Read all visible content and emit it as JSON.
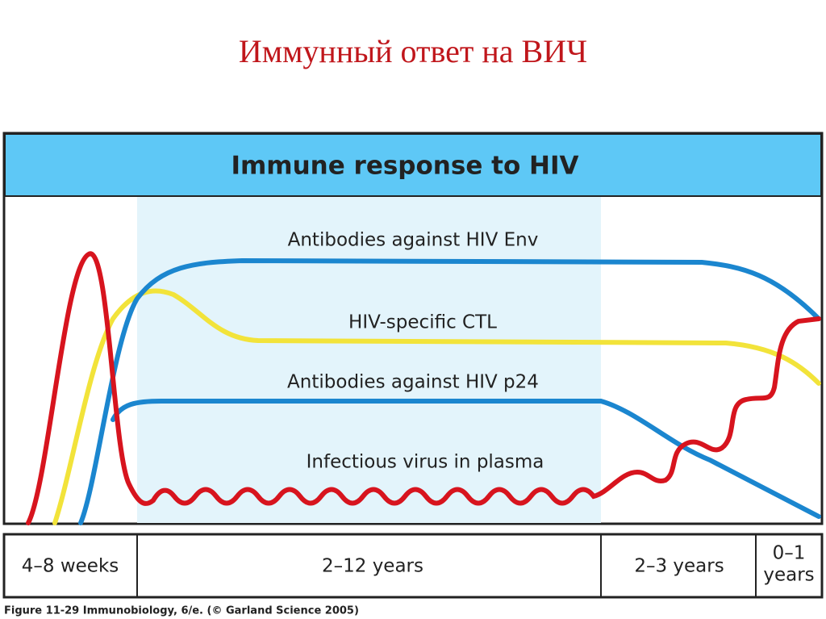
{
  "slide_title": "Иммунный ответ на ВИЧ",
  "figure": {
    "title": "Immune response to HIV",
    "curves": [
      "Antibodies against HIV Env",
      "HIV-specific CTL",
      "Antibodies against HIV p24",
      "Infectious virus in plasma"
    ],
    "periods": [
      [
        "4–8 weeks"
      ],
      [
        "2–12 years"
      ],
      [
        "2–3 years"
      ],
      [
        "0–1",
        "years"
      ]
    ],
    "caption": "Figure 11-29 Immunobiology, 6/e. (© Garland Science 2005)"
  }
}
